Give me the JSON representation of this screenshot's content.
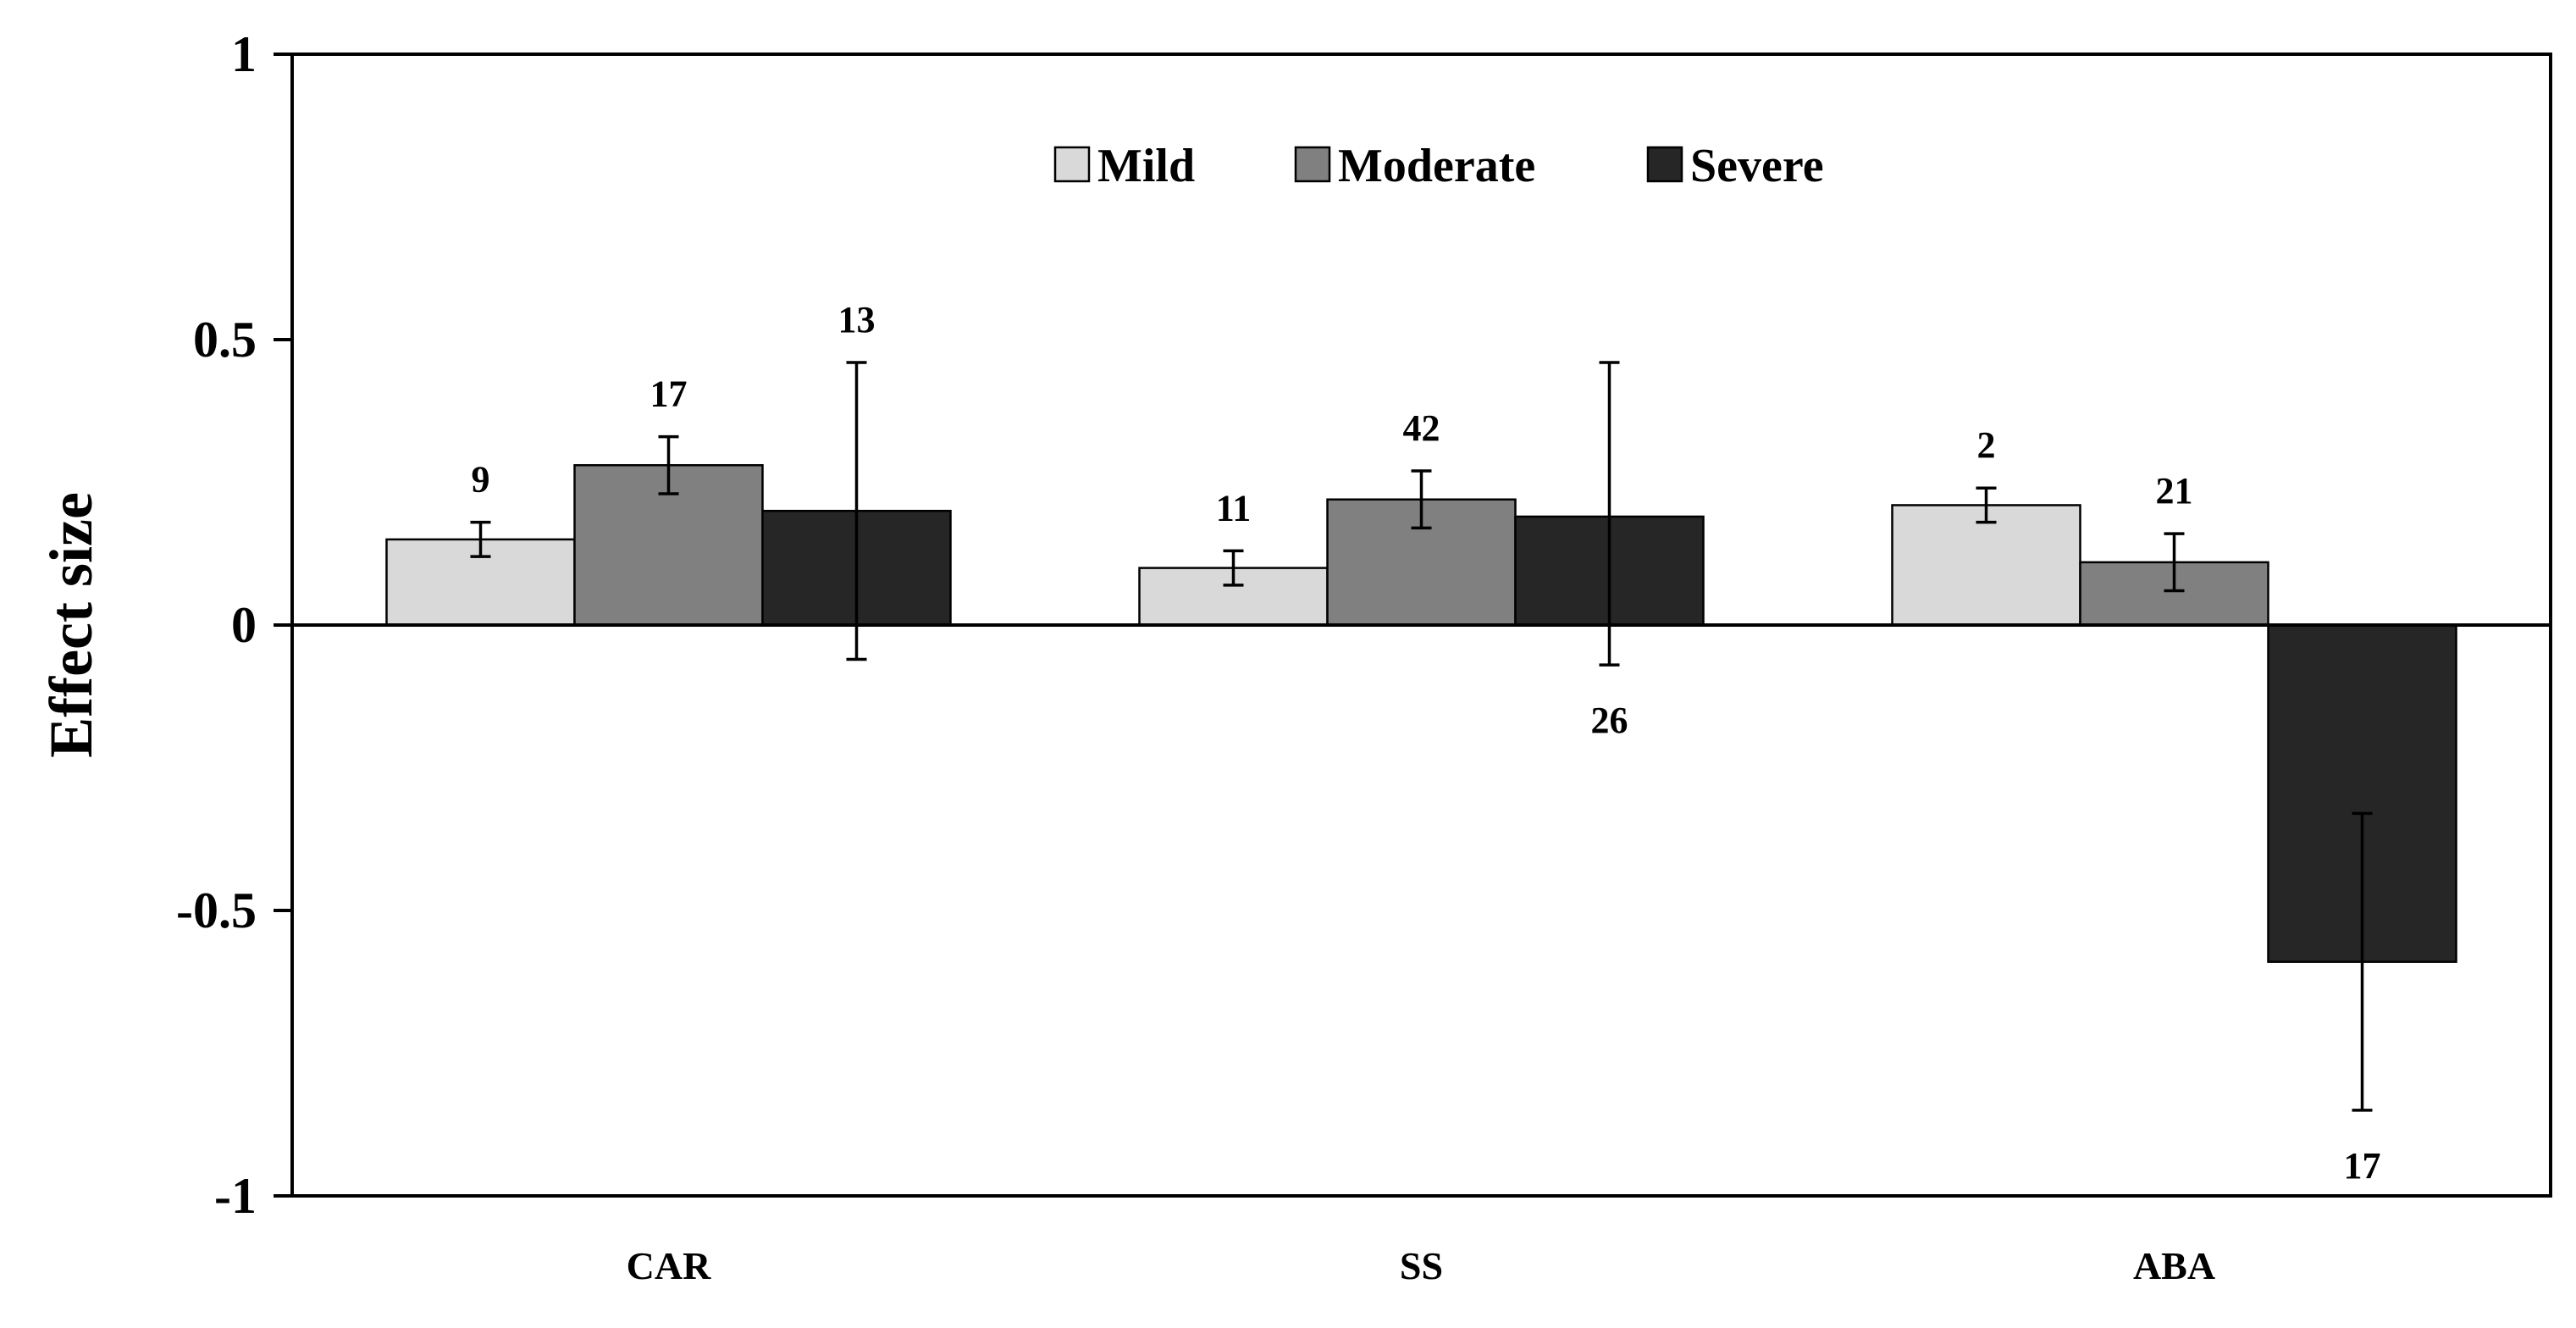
{
  "chart_data": {
    "type": "bar",
    "title": "",
    "xlabel": "",
    "ylabel": "Effect size",
    "ylim": [
      -1,
      1
    ],
    "yticks": [
      1,
      0.5,
      0,
      -0.5,
      -1
    ],
    "ytick_labels": [
      "1",
      "0.5",
      "0",
      "-0.5",
      "-1"
    ],
    "categories": [
      "CAR",
      "SS",
      "ABA"
    ],
    "grid": false,
    "legend_position": "top-center",
    "series": [
      {
        "name": "Mild",
        "color": "#d9d9d9",
        "values": [
          0.15,
          0.1,
          0.21
        ],
        "error_low": [
          0.12,
          0.07,
          0.18
        ],
        "error_high": [
          0.18,
          0.13,
          0.24
        ],
        "n_labels": [
          "9",
          "11",
          "2"
        ]
      },
      {
        "name": "Moderate",
        "color": "#808080",
        "values": [
          0.28,
          0.22,
          0.11
        ],
        "error_low": [
          0.23,
          0.17,
          0.06
        ],
        "error_high": [
          0.33,
          0.27,
          0.16
        ],
        "n_labels": [
          "17",
          "42",
          "21"
        ]
      },
      {
        "name": "Severe",
        "color": "#262626",
        "values": [
          0.2,
          0.19,
          -0.59
        ],
        "error_low": [
          -0.06,
          -0.07,
          -0.85
        ],
        "error_high": [
          0.46,
          0.46,
          -0.33
        ],
        "n_labels": [
          "13",
          "26",
          "17"
        ]
      }
    ]
  }
}
